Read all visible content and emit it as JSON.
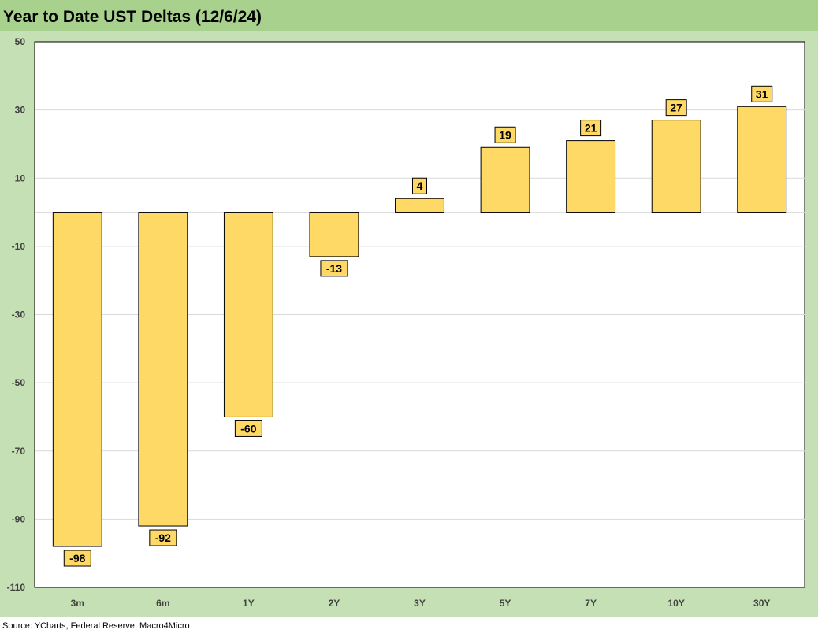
{
  "title": "Year to Date UST Deltas (12/6/24)",
  "source": "Source: YCharts, Federal Reserve, Macro4Micro",
  "colors": {
    "panel": "#c5e0b4",
    "title_bar": "#a9d18e",
    "bar_fill": "#ffd966",
    "bar_stroke": "#000000",
    "plot_bg": "#ffffff",
    "gridline": "#d9d9d9"
  },
  "chart_data": {
    "type": "bar",
    "categories": [
      "3m",
      "6m",
      "1Y",
      "2Y",
      "3Y",
      "5Y",
      "7Y",
      "10Y",
      "30Y"
    ],
    "values": [
      -98,
      -92,
      -60,
      -13,
      4,
      19,
      21,
      27,
      31
    ],
    "data_labels": [
      "-98",
      "-92",
      "-60",
      "-13",
      "4",
      "19",
      "21",
      "27",
      "31"
    ],
    "yticks": [
      50,
      30,
      10,
      -10,
      -30,
      -50,
      -70,
      -90,
      -110
    ],
    "ylim": [
      -110,
      50
    ],
    "grid": true,
    "legend": "none"
  }
}
